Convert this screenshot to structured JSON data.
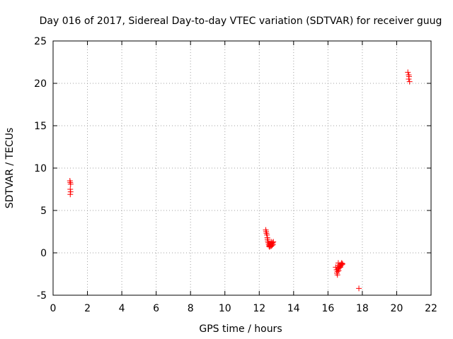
{
  "chart_data": {
    "type": "scatter",
    "title": "Day 016 of 2017, Sidereal Day-to-day VTEC variation (SDTVAR) for receiver guug",
    "xlabel": "GPS time / hours",
    "ylabel": "SDTVAR / TECUs",
    "xlim": [
      0,
      22
    ],
    "ylim": [
      -5,
      25
    ],
    "xticks": [
      0,
      2,
      4,
      6,
      8,
      10,
      12,
      14,
      16,
      18,
      20,
      22
    ],
    "yticks": [
      -5,
      0,
      5,
      10,
      15,
      20,
      25
    ],
    "grid": true,
    "marker": "+",
    "colors": {
      "points": "#ff0000",
      "axes": "#000000",
      "grid": "#a0a0a0"
    },
    "series": [
      {
        "points": [
          [
            0.98,
            8.5
          ],
          [
            1.0,
            8.3
          ],
          [
            1.02,
            8.1
          ],
          [
            1.0,
            7.5
          ],
          [
            1.02,
            7.2
          ],
          [
            1.0,
            6.9
          ],
          [
            12.38,
            2.7
          ],
          [
            12.4,
            2.5
          ],
          [
            12.42,
            2.3
          ],
          [
            12.45,
            2.1
          ],
          [
            12.47,
            1.8
          ],
          [
            12.48,
            1.6
          ],
          [
            12.5,
            1.4
          ],
          [
            12.52,
            1.2
          ],
          [
            12.55,
            1.0
          ],
          [
            12.57,
            0.8
          ],
          [
            12.6,
            0.9
          ],
          [
            12.62,
            1.1
          ],
          [
            12.65,
            0.8
          ],
          [
            12.68,
            1.0
          ],
          [
            12.7,
            1.3
          ],
          [
            12.72,
            1.1
          ],
          [
            12.75,
            0.9
          ],
          [
            12.78,
            1.2
          ],
          [
            12.8,
            1.0
          ],
          [
            12.82,
            1.3
          ],
          [
            12.6,
            0.7
          ],
          [
            12.7,
            0.8
          ],
          [
            16.45,
            -1.7
          ],
          [
            16.5,
            -2.0
          ],
          [
            16.52,
            -2.4
          ],
          [
            16.55,
            -2.6
          ],
          [
            16.55,
            -2.2
          ],
          [
            16.58,
            -1.9
          ],
          [
            16.6,
            -1.5
          ],
          [
            16.62,
            -2.1
          ],
          [
            16.65,
            -1.8
          ],
          [
            16.68,
            -1.6
          ],
          [
            16.7,
            -1.4
          ],
          [
            16.72,
            -1.7
          ],
          [
            16.75,
            -1.5
          ],
          [
            16.78,
            -1.3
          ],
          [
            16.8,
            -1.2
          ],
          [
            16.82,
            -1.4
          ],
          [
            16.85,
            -1.3
          ],
          [
            16.6,
            -1.2
          ],
          [
            17.8,
            -4.2
          ],
          [
            20.65,
            21.3
          ],
          [
            20.7,
            21.0
          ],
          [
            20.72,
            20.8
          ],
          [
            20.7,
            20.5
          ],
          [
            20.75,
            20.2
          ]
        ]
      }
    ]
  }
}
